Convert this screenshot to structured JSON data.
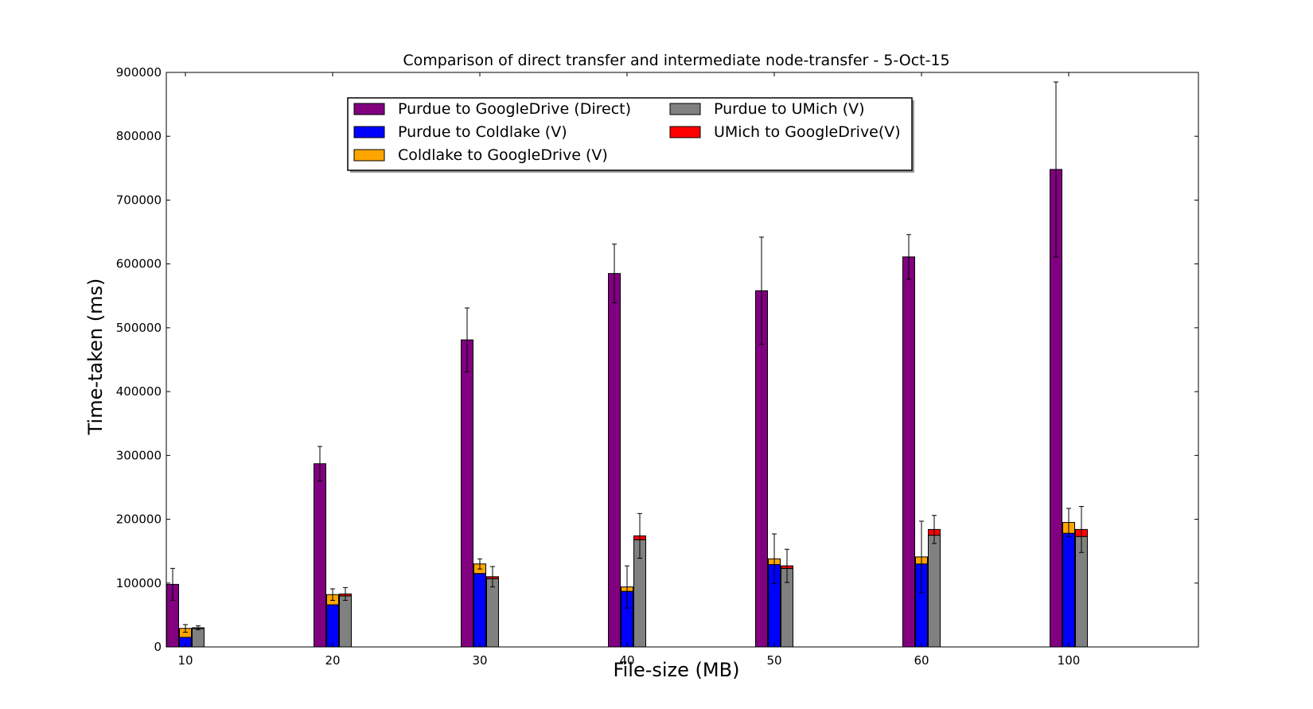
{
  "chart_data": {
    "type": "bar",
    "title": "Comparison of direct transfer and intermediate node-transfer - 5-Oct-15",
    "xlabel": "File-size (MB)",
    "ylabel": "Time-taken (ms)",
    "ylim": [
      0,
      900000
    ],
    "yticks": [
      0,
      100000,
      200000,
      300000,
      400000,
      500000,
      600000,
      700000,
      800000,
      900000
    ],
    "categories": [
      "10",
      "20",
      "30",
      "40",
      "50",
      "60",
      "100"
    ],
    "legend_position": "top-center",
    "series": [
      {
        "name": "Purdue to GoogleDrive (Direct)",
        "color": "#800080",
        "group": "direct",
        "values": [
          98000,
          287000,
          481000,
          585000,
          558000,
          611000,
          748000
        ],
        "error": [
          25000,
          27000,
          50000,
          46000,
          84000,
          35000,
          137000
        ]
      },
      {
        "name": "Purdue to Coldlake (V)",
        "color": "#0000ff",
        "group": "via-coldlake",
        "values": [
          15000,
          66000,
          115000,
          87000,
          129000,
          130000,
          178000
        ],
        "error": [
          0,
          0,
          0,
          0,
          0,
          0,
          0
        ]
      },
      {
        "name": "Coldlake to GoogleDrive (V)",
        "color": "#ffa500",
        "group": "via-coldlake",
        "values": [
          14000,
          16000,
          15000,
          7000,
          9000,
          11000,
          17000
        ],
        "error": [
          6000,
          9000,
          8000,
          33000,
          39000,
          56000,
          22000
        ]
      },
      {
        "name": "Purdue to UMich (V)",
        "color": "#808080",
        "group": "via-umich",
        "values": [
          29000,
          80000,
          107000,
          168000,
          123000,
          175000,
          173000
        ],
        "error": [
          0,
          0,
          0,
          0,
          0,
          0,
          0
        ]
      },
      {
        "name": "UMich to GoogleDrive(V)",
        "color": "#ff0000",
        "group": "via-umich",
        "values": [
          1000,
          3000,
          3000,
          6000,
          4000,
          9000,
          11000
        ],
        "error": [
          3000,
          10000,
          16000,
          35000,
          26000,
          22000,
          36000
        ]
      }
    ]
  }
}
